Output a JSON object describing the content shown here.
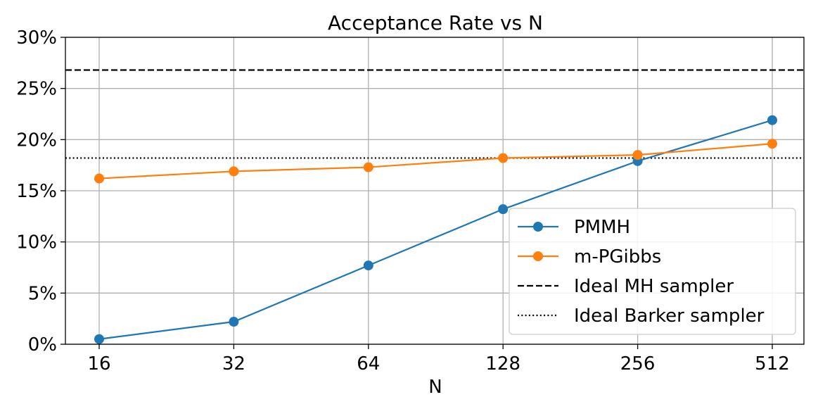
{
  "chart_data": {
    "type": "line",
    "title": "Acceptance Rate vs N",
    "xlabel": "N",
    "ylabel": "",
    "categories": [
      "16",
      "32",
      "64",
      "128",
      "256",
      "512"
    ],
    "ylim": [
      0,
      30
    ],
    "yticks": [
      0,
      5,
      10,
      15,
      20,
      25,
      30
    ],
    "ytick_labels": [
      "0%",
      "5%",
      "10%",
      "15%",
      "20%",
      "25%",
      "30%"
    ],
    "grid": true,
    "legend_position": "lower-right",
    "series": [
      {
        "name": "PMMH",
        "color": "#1f77b4",
        "marker": "circle",
        "values": [
          0.5,
          2.2,
          7.7,
          13.2,
          17.9,
          21.9
        ]
      },
      {
        "name": "m-PGibbs",
        "color": "#ff7f0e",
        "marker": "circle",
        "values": [
          16.2,
          16.9,
          17.3,
          18.2,
          18.5,
          19.6
        ]
      }
    ],
    "reference_lines": [
      {
        "name": "Ideal MH sampler",
        "value": 26.8,
        "style": "dashed",
        "color": "#000000"
      },
      {
        "name": "Ideal Barker sampler",
        "value": 18.2,
        "style": "dotted",
        "color": "#000000"
      }
    ]
  }
}
